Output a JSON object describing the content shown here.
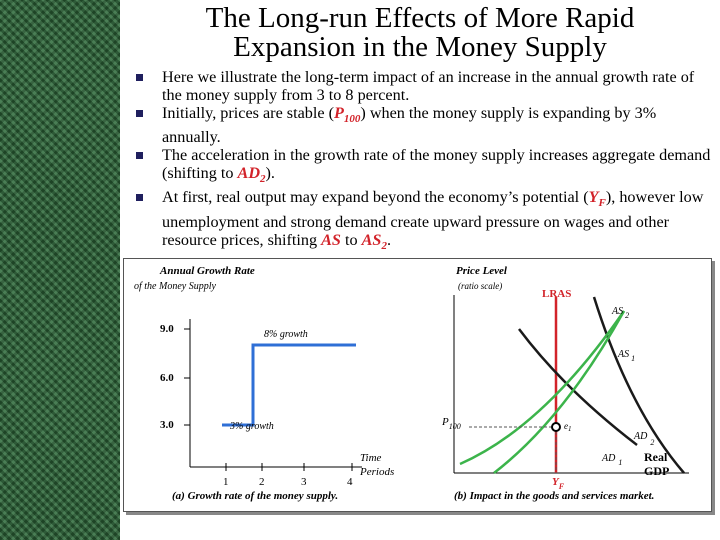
{
  "title": {
    "line1": "The Long-run Effects of More Rapid",
    "line2": "Expansion in the Money Supply"
  },
  "bullets": [
    {
      "text": "Here we illustrate the long-term impact of an increase in the annual growth rate of the money supply from 3 to 8 percent."
    },
    {
      "a": "Initially, prices are stable (",
      "b": "P",
      "c": "100",
      "d": ") when the money supply is expanding by 3% annually."
    },
    {
      "a": "The acceleration in the growth rate of the money supply increases aggregate demand (shifting to ",
      "b": "AD",
      "c": "2",
      "d": ")."
    },
    {
      "a": "At first, real output may expand beyond the economy’s potential (",
      "b": "Y",
      "c": "F",
      "d": "), however low unemployment and strong demand create upward pressure on wages and other resource prices, shifting ",
      "e": "AS",
      "f": " to ",
      "g": "AS",
      "h": "2",
      "i": "."
    }
  ],
  "left_chart": {
    "ylabel_line1": "Annual Growth Rate",
    "ylabel_line2": "of the Money Supply",
    "y_ticks": [
      "9.0",
      "6.0",
      "3.0"
    ],
    "x_ticks": [
      "1",
      "2",
      "3",
      "4"
    ],
    "xlabel_line1": "Time",
    "xlabel_line2": "Periods",
    "label_low": "3% growth",
    "label_high": "8% growth",
    "caption": "(a) Growth rate of the money supply.",
    "step": {
      "before": 3,
      "after": 8,
      "switch_period": 1.75
    },
    "color": "#2f6fd6"
  },
  "right_chart": {
    "ylabel_line1": "Price Level",
    "ylabel_line2": "(ratio scale)",
    "xlabel_line1": "Real",
    "xlabel_line2": "GDP",
    "lras_label": "LRAS",
    "as1": "AS",
    "as1_sub": "1",
    "as2": "AS",
    "as2_sub": "2",
    "ad1": "AD",
    "ad1_sub": "1",
    "ad2": "AD",
    "ad2_sub": "2",
    "p_label": "P",
    "p_sub": "100",
    "e_label": "e",
    "e_sub": "1",
    "yf_label": "Y",
    "yf_sub": "F",
    "caption": "(b) Impact in the goods and services market.",
    "colors": {
      "lras": "#d2232a",
      "as": "#3cb44b",
      "ad": "#1a1a1a",
      "label": "#d2232a"
    }
  }
}
